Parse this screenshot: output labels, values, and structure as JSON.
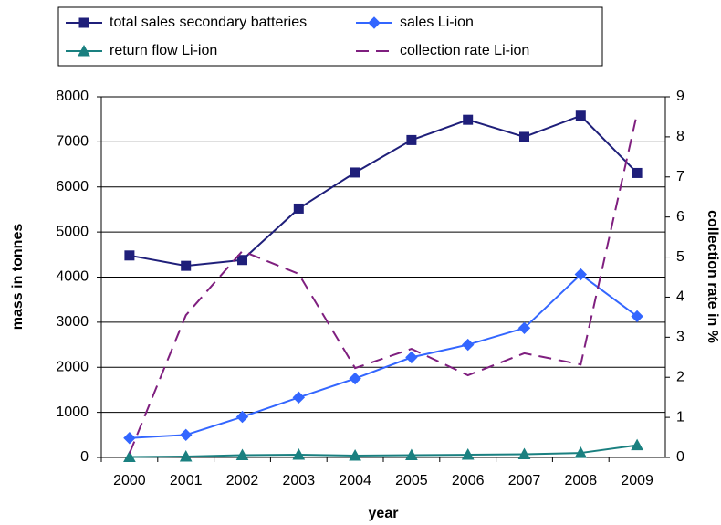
{
  "chart_data": {
    "type": "line",
    "x_label": "year",
    "y_label": "mass in tonnes",
    "y2_label": "collection rate in %",
    "categories": [
      "2000",
      "2001",
      "2002",
      "2003",
      "2004",
      "2005",
      "2006",
      "2007",
      "2008",
      "2009"
    ],
    "series": [
      {
        "name": "total sales secondary batteries",
        "color": "#1f1f7a",
        "marker": "square",
        "dashed": false,
        "values": [
          4480,
          4250,
          4380,
          5520,
          6320,
          7040,
          7490,
          7110,
          7580,
          6310
        ]
      },
      {
        "name": "sales Li-ion",
        "color": "#3366ff",
        "marker": "diamond",
        "dashed": false,
        "values": [
          430,
          500,
          900,
          1330,
          1750,
          2220,
          2500,
          2870,
          4060,
          3130
        ]
      },
      {
        "name": "return flow Li-ion",
        "color": "#1a8080",
        "marker": "triangle",
        "dashed": false,
        "values": [
          10,
          20,
          50,
          60,
          40,
          50,
          60,
          70,
          100,
          270
        ]
      },
      {
        "name": "collection rate Li-ion",
        "color": "#7f1f7f",
        "marker": "none",
        "dashed": true,
        "axis": "y2",
        "values": [
          0.1,
          3.55,
          5.15,
          4.58,
          2.23,
          2.71,
          2.05,
          2.6,
          2.32,
          8.59
        ]
      }
    ],
    "ylim": [
      0,
      8000
    ],
    "yticks": [
      0,
      1000,
      2000,
      3000,
      4000,
      5000,
      6000,
      7000,
      8000
    ],
    "y2lim": [
      0,
      9
    ],
    "y2ticks": [
      0,
      1,
      2,
      3,
      4,
      5,
      6,
      7,
      8,
      9
    ],
    "grid": true
  }
}
